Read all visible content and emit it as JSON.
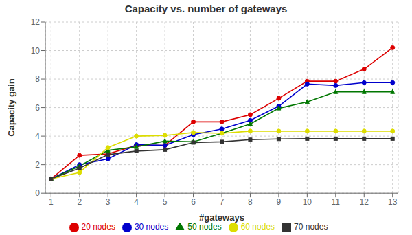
{
  "chart_data": {
    "type": "line",
    "title": "Capacity vs. number of gateways",
    "xlabel": "#gateways",
    "ylabel": "Capacity gain",
    "x": [
      1,
      2,
      3,
      4,
      5,
      6,
      7,
      8,
      9,
      10,
      11,
      12,
      13
    ],
    "series": [
      {
        "name": "20 nodes",
        "color": "#dd0000",
        "marker": "circle",
        "values": [
          1.0,
          2.65,
          2.75,
          3.35,
          3.35,
          5.0,
          5.0,
          5.5,
          6.65,
          7.85,
          7.85,
          8.7,
          10.2
        ]
      },
      {
        "name": "30 nodes",
        "color": "#0000cc",
        "marker": "circle",
        "values": [
          1.0,
          2.0,
          2.4,
          3.4,
          3.35,
          4.1,
          4.5,
          5.1,
          6.1,
          7.65,
          7.55,
          7.75,
          7.75
        ]
      },
      {
        "name": "50 nodes",
        "color": "#007700",
        "marker": "triangle",
        "values": [
          1.0,
          1.9,
          3.0,
          3.25,
          3.65,
          3.6,
          4.2,
          4.85,
          5.95,
          6.4,
          7.1,
          7.1,
          7.1
        ]
      },
      {
        "name": "60 nodes",
        "color": "#dddd00",
        "marker": "circle",
        "values": [
          1.0,
          1.45,
          3.2,
          4.0,
          4.05,
          4.25,
          4.2,
          4.35,
          4.35,
          4.35,
          4.35,
          4.35,
          4.35
        ]
      },
      {
        "name": "70 nodes",
        "color": "#333333",
        "marker": "square",
        "values": [
          1.0,
          1.75,
          2.7,
          2.95,
          3.05,
          3.55,
          3.6,
          3.75,
          3.8,
          3.82,
          3.82,
          3.82,
          3.82
        ]
      }
    ],
    "xlim": [
      0.8,
      13.2
    ],
    "xticks": [
      1,
      2,
      3,
      4,
      5,
      6,
      7,
      8,
      9,
      10,
      11,
      12,
      13
    ],
    "ylim": [
      0,
      12
    ],
    "yticks": [
      0,
      2,
      4,
      6,
      8,
      10,
      12
    ],
    "grid": true,
    "legend": "bottom"
  }
}
